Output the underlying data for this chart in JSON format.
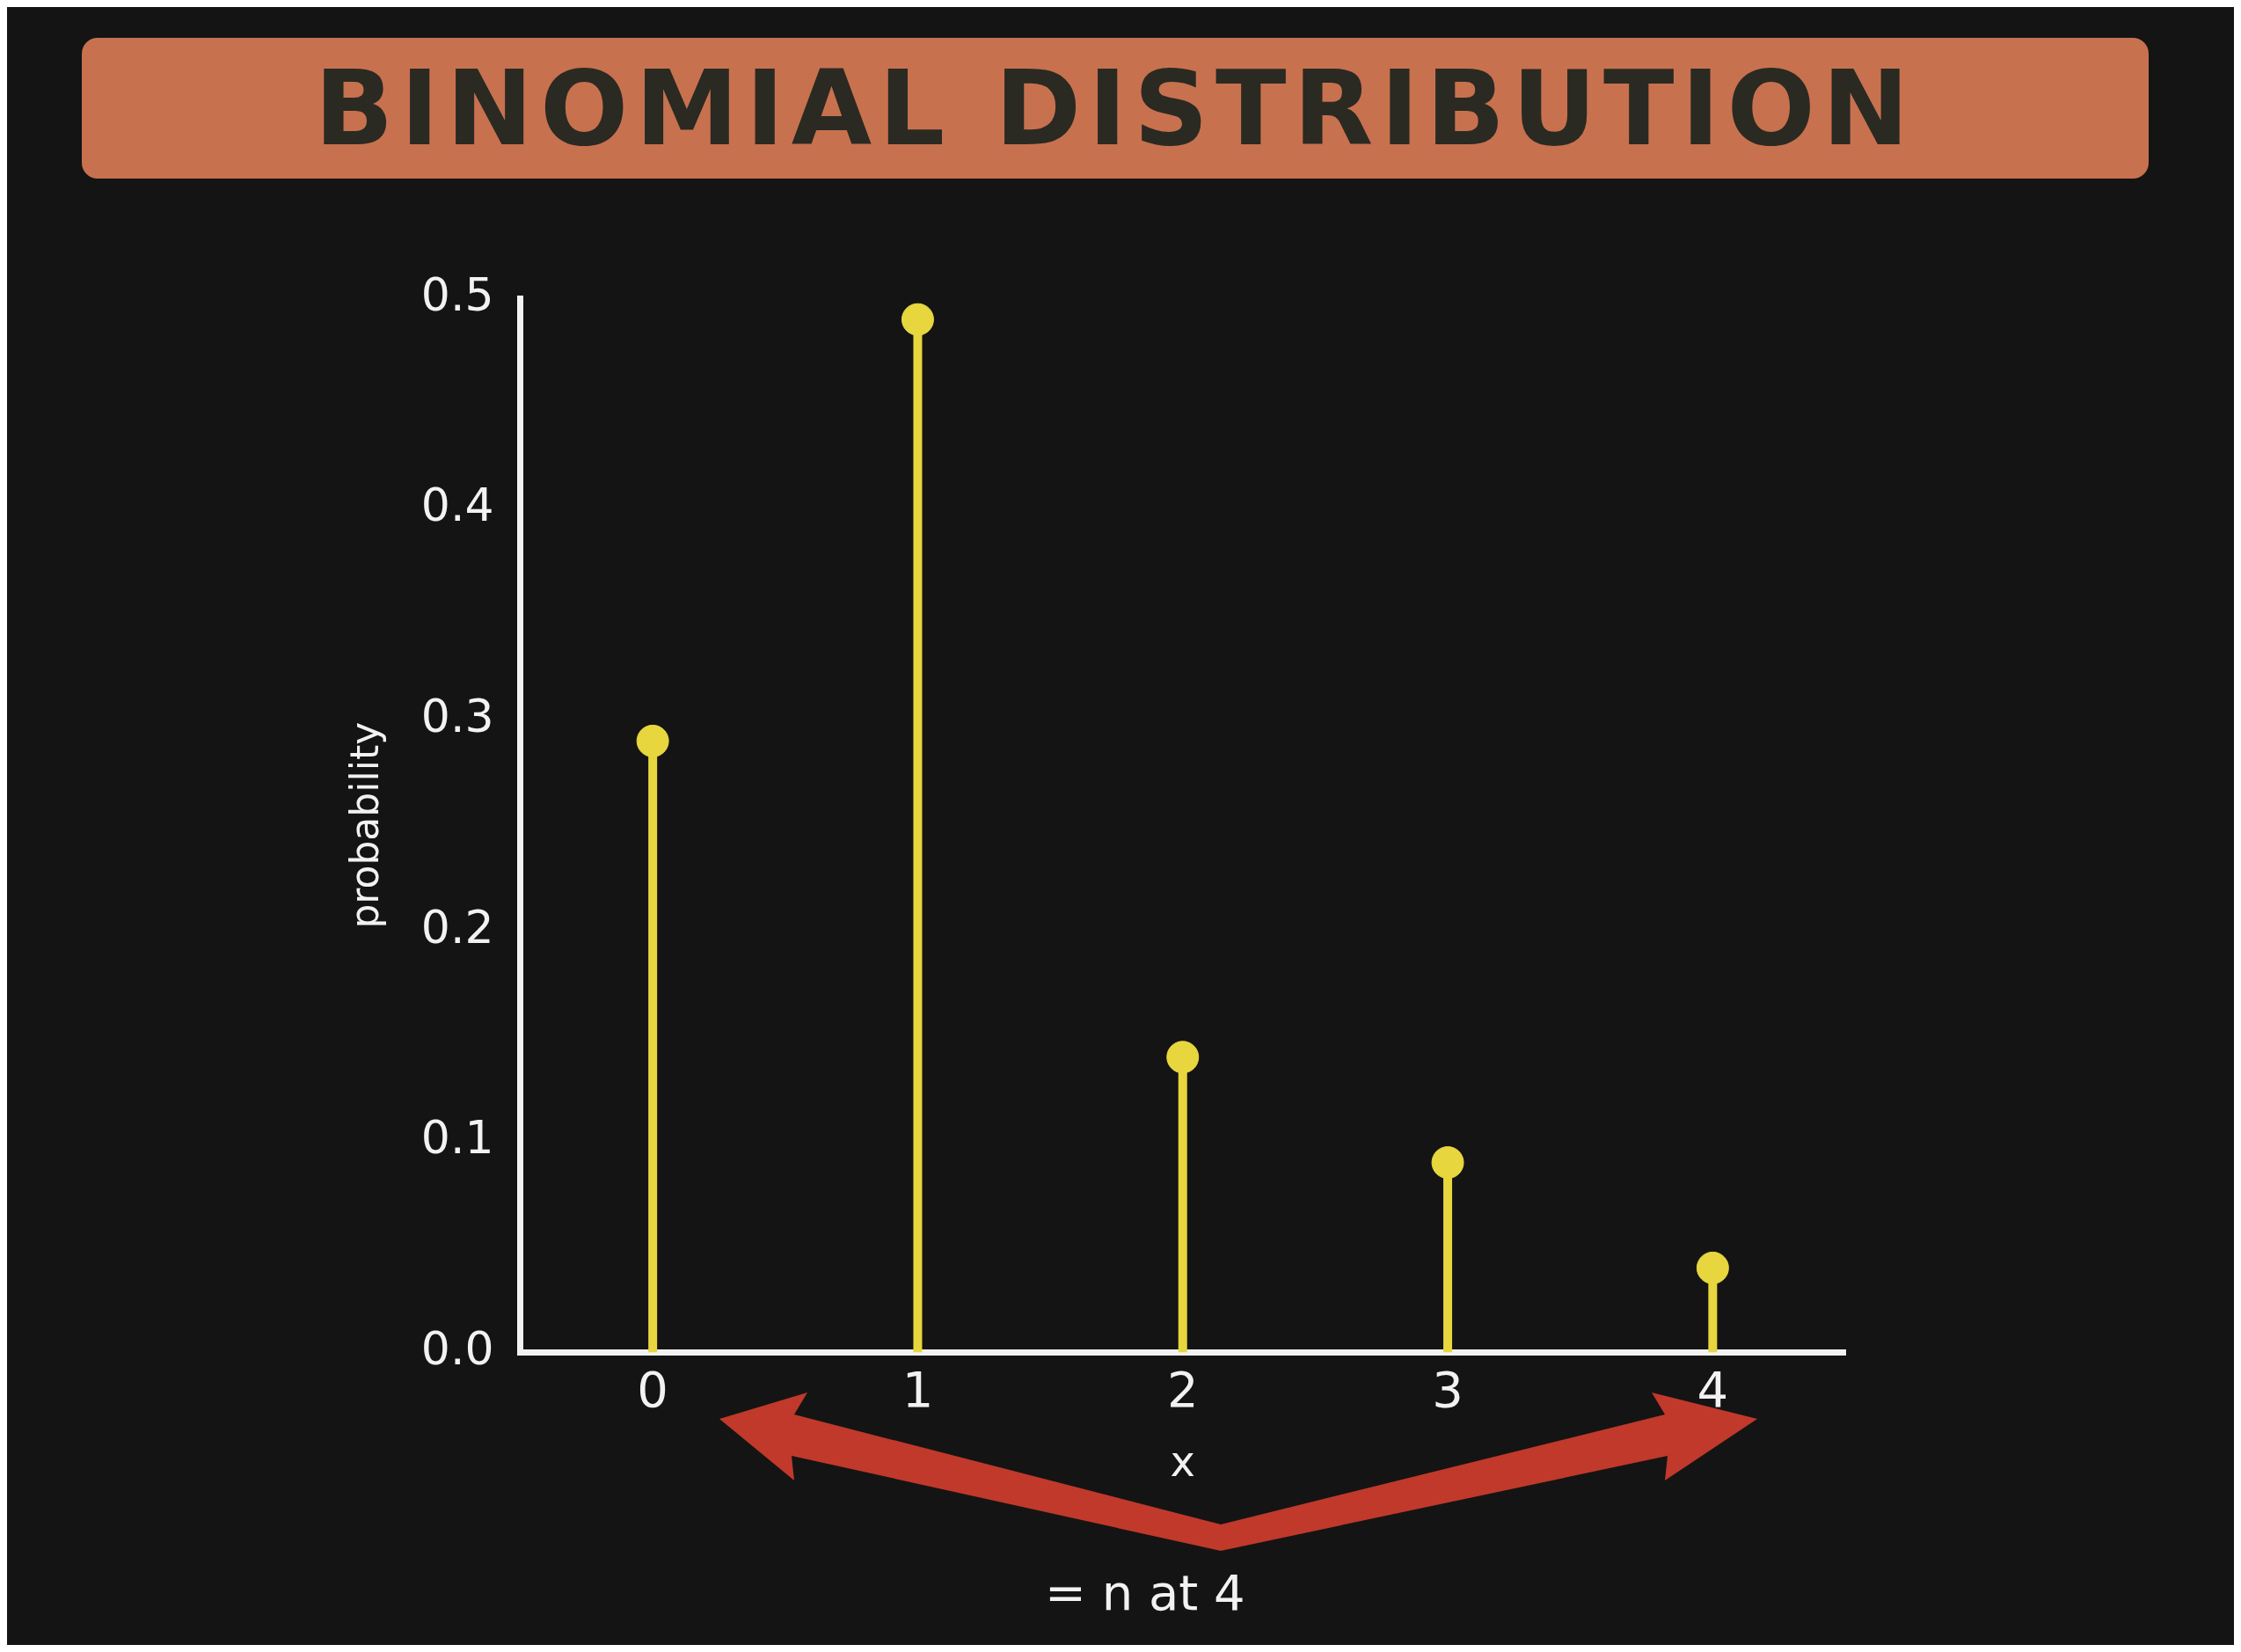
{
  "chart_data": {
    "type": "lollipop",
    "title": "BINOMIAL DISTRIBUTION",
    "xlabel": "x",
    "ylabel": "probability",
    "categories": [
      "0",
      "1",
      "2",
      "3",
      "4"
    ],
    "values": [
      0.29,
      0.49,
      0.14,
      0.09,
      0.04
    ],
    "color": "#e8d63e",
    "ylim": [
      0,
      0.5
    ],
    "yticks": [
      {
        "value": 0,
        "label": "0.0"
      },
      {
        "value": 0.1,
        "label": "0.1"
      },
      {
        "value": 0.2,
        "label": "0.2"
      },
      {
        "value": 0.3,
        "label": "0.3"
      },
      {
        "value": 0.4,
        "label": "0.4"
      },
      {
        "value": 0.5,
        "label": "0.5"
      }
    ],
    "marker": "circle",
    "grid": false,
    "annotations": [
      "= n at 4"
    ]
  }
}
